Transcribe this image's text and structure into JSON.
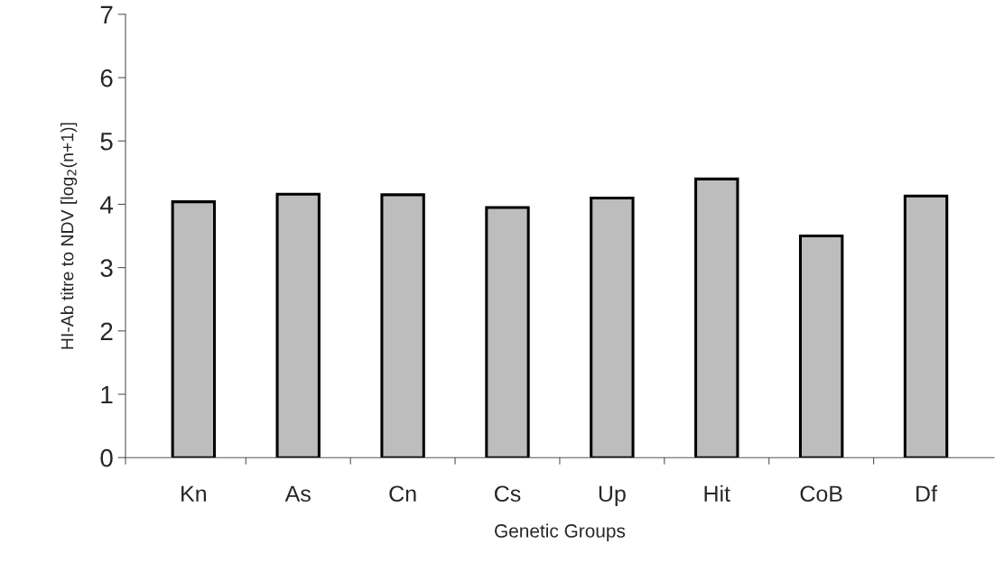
{
  "chart_data": {
    "type": "bar",
    "xlabel": "Genetic Groups",
    "ylabel": "HI-Ab titre to NDV [log$_{2}$(n+1)]",
    "categories": [
      "Kn",
      "As",
      "Cn",
      "Cs",
      "Up",
      "Hit",
      "CoB",
      "Df"
    ],
    "values": [
      4.04,
      4.16,
      4.15,
      3.95,
      4.1,
      4.4,
      3.5,
      4.13
    ],
    "color": "#bdbdbd",
    "ylim": [
      0,
      7
    ],
    "yticks": [
      0,
      1,
      2,
      3,
      4,
      5,
      6,
      7
    ],
    "grid": false
  }
}
